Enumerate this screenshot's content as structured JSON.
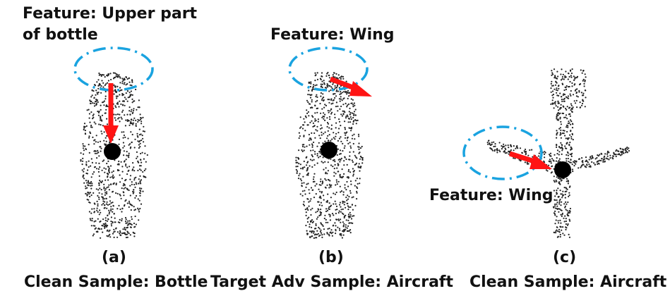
{
  "colors": {
    "ellipse": "#1aa3e0",
    "arrow": "#ff1414",
    "points": "#222222",
    "centroid": "#000000",
    "text": "#111111"
  },
  "panels": [
    {
      "id": "a",
      "feature_lines": [
        "Feature: Upper part",
        "of bottle"
      ],
      "letter": "(a)",
      "caption": "Clean Sample: Bottle"
    },
    {
      "id": "b",
      "feature_lines": [
        "Feature: Wing"
      ],
      "letter": "(b)",
      "caption": "Target Adv Sample: Aircraft"
    },
    {
      "id": "c",
      "feature_lines": [
        "Feature: Wing"
      ],
      "letter": "(c)",
      "caption": "Clean Sample: Aircraft"
    }
  ]
}
